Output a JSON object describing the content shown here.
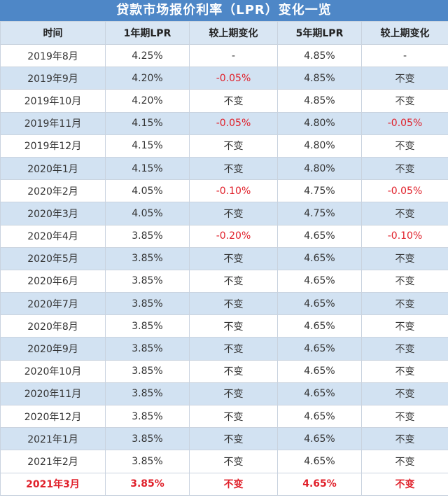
{
  "title": "贷款市场报价利率（LPR）变化一览",
  "table": {
    "headers": [
      "时间",
      "1年期LPR",
      "较上期变化",
      "5年期LPR",
      "较上期变化"
    ],
    "rows": [
      [
        "2019年8月",
        "4.25%",
        "-",
        "4.85%",
        "-"
      ],
      [
        "2019年9月",
        "4.20%",
        "-0.05%",
        "4.85%",
        "不变"
      ],
      [
        "2019年10月",
        "4.20%",
        "不变",
        "4.85%",
        "不变"
      ],
      [
        "2019年11月",
        "4.15%",
        "-0.05%",
        "4.80%",
        "-0.05%"
      ],
      [
        "2019年12月",
        "4.15%",
        "不变",
        "4.80%",
        "不变"
      ],
      [
        "2020年1月",
        "4.15%",
        "不变",
        "4.80%",
        "不变"
      ],
      [
        "2020年2月",
        "4.05%",
        "-0.10%",
        "4.75%",
        "-0.05%"
      ],
      [
        "2020年3月",
        "4.05%",
        "不变",
        "4.75%",
        "不变"
      ],
      [
        "2020年4月",
        "3.85%",
        "-0.20%",
        "4.65%",
        "-0.10%"
      ],
      [
        "2020年5月",
        "3.85%",
        "不变",
        "4.65%",
        "不变"
      ],
      [
        "2020年6月",
        "3.85%",
        "不变",
        "4.65%",
        "不变"
      ],
      [
        "2020年7月",
        "3.85%",
        "不变",
        "4.65%",
        "不变"
      ],
      [
        "2020年8月",
        "3.85%",
        "不变",
        "4.65%",
        "不变"
      ],
      [
        "2020年9月",
        "3.85%",
        "不变",
        "4.65%",
        "不变"
      ],
      [
        "2020年10月",
        "3.85%",
        "不变",
        "4.65%",
        "不变"
      ],
      [
        "2020年11月",
        "3.85%",
        "不变",
        "4.65%",
        "不变"
      ],
      [
        "2020年12月",
        "3.85%",
        "不变",
        "4.65%",
        "不变"
      ],
      [
        "2021年1月",
        "3.85%",
        "不变",
        "4.65%",
        "不变"
      ],
      [
        "2021年2月",
        "3.85%",
        "不变",
        "4.65%",
        "不变"
      ],
      [
        "2021年3月",
        "3.85%",
        "不变",
        "4.65%",
        "不变"
      ]
    ]
  },
  "colors": {
    "header_bar": "#4e87c7",
    "stripe": "#d2e2f2",
    "negative": "#e0202a"
  }
}
